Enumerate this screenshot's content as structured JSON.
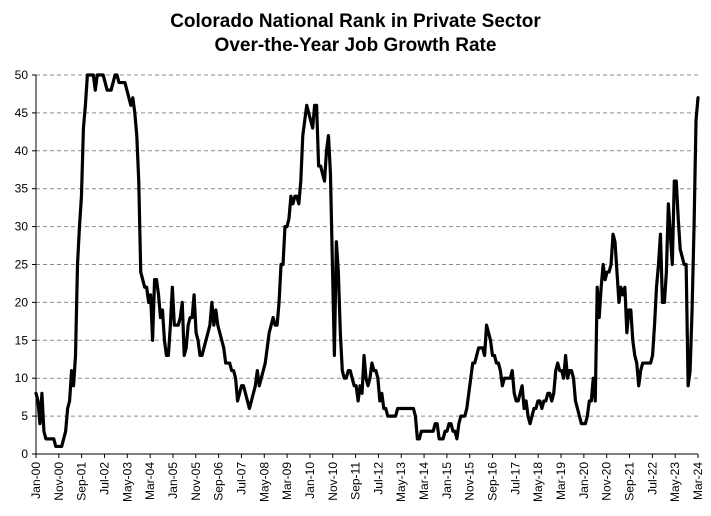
{
  "chart_data": {
    "type": "line",
    "title_line1": "Colorado National Rank in Private Sector",
    "title_line2": "Over-the-Year Job Growth Rate",
    "xlabel": "",
    "ylabel": "",
    "ylim": [
      0,
      50
    ],
    "y_ticks": [
      0,
      5,
      10,
      15,
      20,
      25,
      30,
      35,
      40,
      45,
      50
    ],
    "grid": "horizontal-dashed",
    "x_tick_labels": [
      "Jan-00",
      "Nov-00",
      "Sep-01",
      "Jul-02",
      "May-03",
      "Mar-04",
      "Jan-05",
      "Nov-05",
      "Sep-06",
      "Jul-07",
      "May-08",
      "Mar-09",
      "Jan-10",
      "Nov-10",
      "Sep-11",
      "Jul-12",
      "May-13",
      "Mar-14",
      "Jan-15",
      "Nov-15",
      "Sep-16",
      "Jul-17",
      "May-18",
      "Mar-19",
      "Jan-20",
      "Nov-20",
      "Sep-21",
      "Jul-22",
      "May-23",
      "Mar-24"
    ],
    "x_start": "Jan-00",
    "x_end": "Mar-24",
    "series_color": "#000000",
    "series": [
      {
        "values": [
          8,
          7,
          4,
          8,
          3,
          2,
          2,
          2,
          2,
          2,
          1,
          1,
          1,
          1,
          2,
          3,
          6,
          7,
          11,
          9,
          13,
          25,
          30,
          34,
          43,
          46,
          50,
          50,
          50,
          50,
          48,
          50,
          50,
          50,
          50,
          49,
          48,
          48,
          48,
          49,
          50,
          50,
          49,
          49,
          49,
          49,
          48,
          47,
          46,
          47,
          45,
          42,
          36,
          24,
          23,
          22,
          22,
          20,
          21,
          15,
          23,
          23,
          21,
          18,
          19,
          15,
          13,
          13,
          17,
          22,
          17,
          17,
          17,
          18,
          20,
          13,
          14,
          17,
          18,
          18,
          21,
          16,
          15,
          13,
          13,
          14,
          15,
          16,
          17,
          20,
          17,
          19,
          17,
          16,
          15,
          14,
          12,
          12,
          12,
          11,
          11,
          10,
          7,
          8,
          9,
          9,
          8,
          7,
          6,
          7,
          8,
          9,
          11,
          9,
          10,
          11,
          12,
          14,
          16,
          17,
          18,
          17,
          17,
          20,
          25,
          25,
          30,
          30,
          31,
          34,
          33,
          34,
          34,
          33,
          36,
          42,
          44,
          46,
          45,
          44,
          43,
          46,
          46,
          38,
          38,
          37,
          36,
          40,
          42,
          37,
          25,
          13,
          28,
          24,
          16,
          11,
          10,
          10,
          11,
          11,
          10,
          9,
          9,
          7,
          9,
          8,
          13,
          10,
          9,
          10,
          12,
          11,
          11,
          10,
          7,
          8,
          6,
          6,
          5,
          5,
          5,
          5,
          5,
          6,
          6,
          6,
          6,
          6,
          6,
          6,
          6,
          6,
          5,
          2,
          2,
          3,
          3,
          3,
          3,
          3,
          3,
          3,
          4,
          4,
          2,
          2,
          2,
          3,
          3,
          4,
          4,
          3,
          3,
          2,
          4,
          5,
          5,
          5,
          6,
          8,
          10,
          12,
          12,
          13,
          14,
          14,
          14,
          13,
          17,
          16,
          15,
          13,
          13,
          12,
          12,
          11,
          9,
          10,
          10,
          10,
          10,
          11,
          8,
          7,
          7,
          8,
          9,
          6,
          7,
          5,
          4,
          5,
          6,
          6,
          7,
          7,
          6,
          7,
          7,
          8,
          8,
          7,
          8,
          11,
          12,
          11,
          11,
          10,
          13,
          10,
          11,
          11,
          10,
          7,
          6,
          5,
          4,
          4,
          4,
          5,
          7,
          7,
          10,
          7,
          22,
          18,
          22,
          25,
          23,
          24,
          24,
          25,
          29,
          28,
          24,
          20,
          22,
          21,
          22,
          16,
          19,
          19,
          15,
          13,
          12,
          9,
          11,
          12,
          12,
          12,
          12,
          12,
          13,
          17,
          22,
          25,
          29,
          20,
          20,
          24,
          33,
          29,
          25,
          36,
          36,
          31,
          27,
          26,
          25,
          25,
          9,
          11,
          19,
          30,
          44,
          47
        ]
      }
    ]
  }
}
